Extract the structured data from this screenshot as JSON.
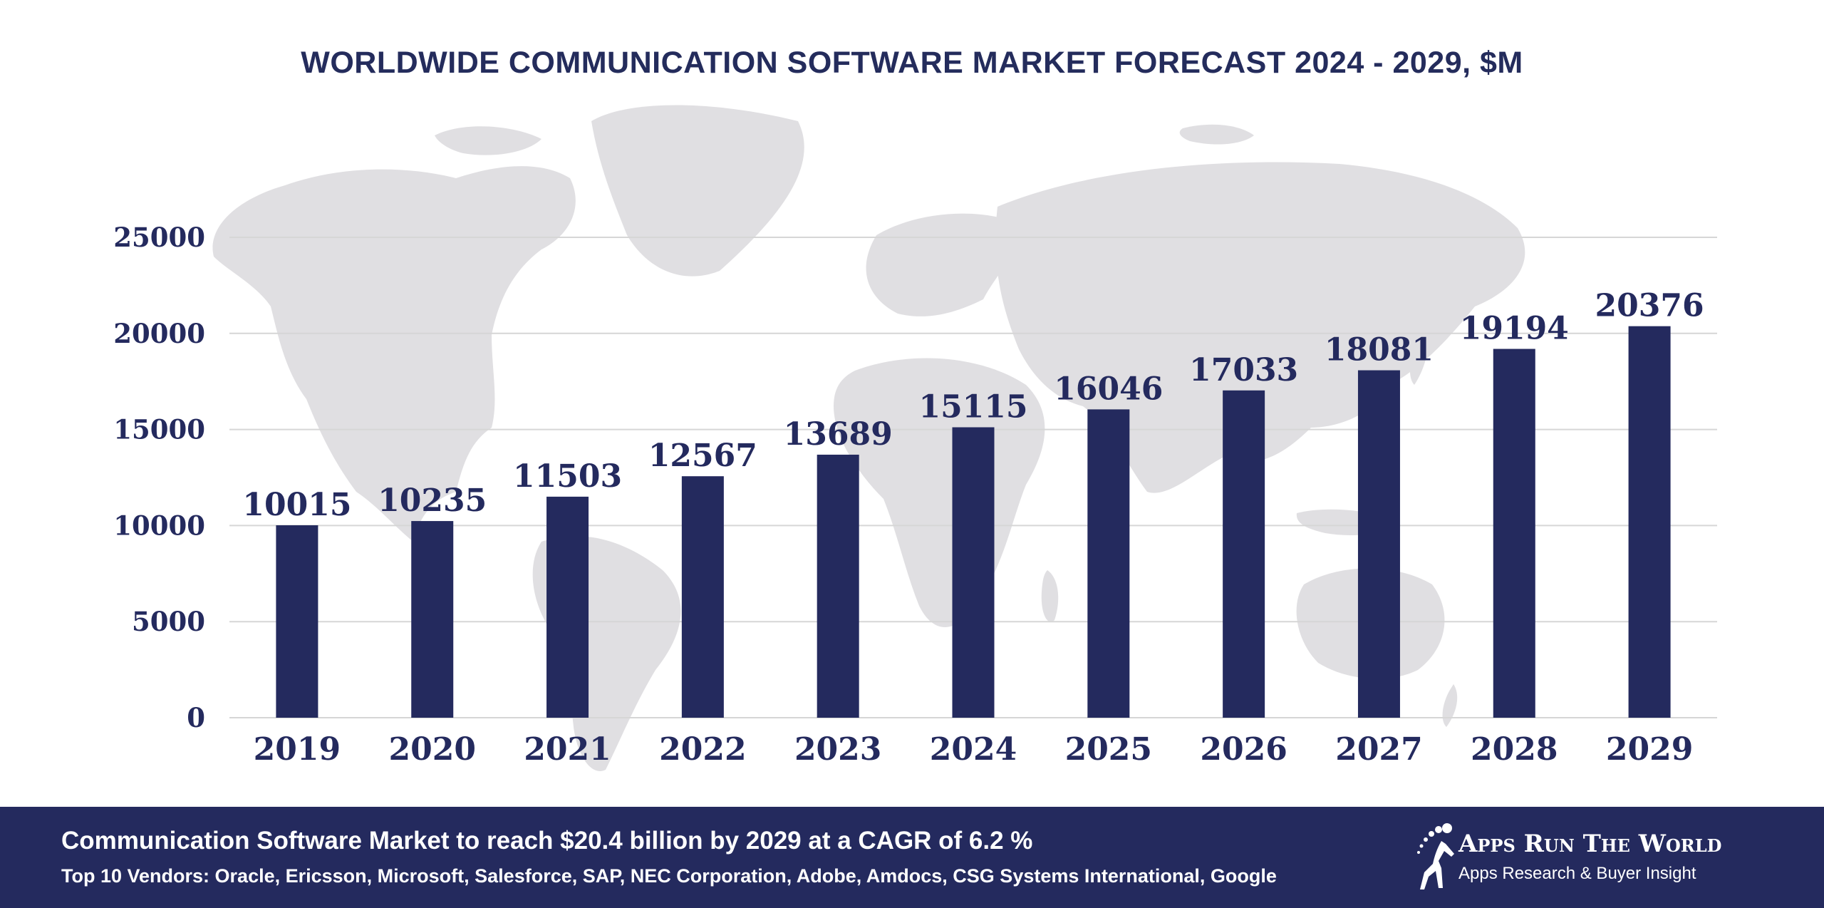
{
  "chart_data": {
    "type": "bar",
    "title": "WORLDWIDE COMMUNICATION SOFTWARE MARKET FORECAST 2024 - 2029, $M",
    "categories": [
      "2019",
      "2020",
      "2021",
      "2022",
      "2023",
      "2024",
      "2025",
      "2026",
      "2027",
      "2028",
      "2029"
    ],
    "values": [
      10015,
      10235,
      11503,
      12567,
      13689,
      15115,
      16046,
      17033,
      18081,
      19194,
      20376
    ],
    "ylim": [
      0,
      25000
    ],
    "yticks": [
      "0",
      "5000",
      "10000",
      "15000",
      "20000",
      "25000"
    ],
    "xlabel": "",
    "ylabel": "",
    "grid": true,
    "bar_color": "#242a5e"
  },
  "footer": {
    "headline": "Communication Software Market to reach $20.4 billion by 2029 at a CAGR of 6.2 %",
    "vendors": "Top 10 Vendors: Oracle, Ericsson, Microsoft, Salesforce, SAP, NEC Corporation, Adobe, Amdocs, CSG Systems International, Google",
    "background_color": "#242a5e"
  },
  "logo": {
    "name": "Apps Run The World",
    "tagline": "Apps Research & Buyer Insight"
  }
}
